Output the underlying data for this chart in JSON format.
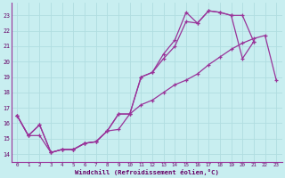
{
  "xlabel": "Windchill (Refroidissement éolien,°C)",
  "bg_color": "#c8eef0",
  "grid_color": "#b0dde0",
  "line_color": "#993399",
  "xlim": [
    -0.5,
    23.5
  ],
  "ylim": [
    13.5,
    23.8
  ],
  "xticks": [
    0,
    1,
    2,
    3,
    4,
    5,
    6,
    7,
    8,
    9,
    10,
    11,
    12,
    13,
    14,
    15,
    16,
    17,
    18,
    19,
    20,
    21,
    22,
    23
  ],
  "yticks": [
    14,
    15,
    16,
    17,
    18,
    19,
    20,
    21,
    22,
    23
  ],
  "series": [
    {
      "x": [
        0,
        1,
        2,
        3,
        4,
        5,
        6,
        7,
        8,
        9,
        10,
        11,
        12,
        13,
        14,
        15,
        16,
        17,
        18,
        19,
        20,
        21
      ],
      "y": [
        16.5,
        15.2,
        15.9,
        14.1,
        14.3,
        14.3,
        14.7,
        14.8,
        15.5,
        16.6,
        16.6,
        19.0,
        19.3,
        20.5,
        21.4,
        23.2,
        22.5,
        23.3,
        23.2,
        23.0,
        23.0,
        21.3
      ]
    },
    {
      "x": [
        0,
        1,
        2,
        3,
        4,
        5,
        6,
        7,
        8,
        9,
        10,
        11,
        12,
        13,
        14,
        15,
        16,
        17,
        18,
        19,
        20,
        21
      ],
      "y": [
        16.5,
        15.2,
        15.9,
        14.1,
        14.3,
        14.3,
        14.7,
        14.8,
        15.5,
        16.6,
        16.6,
        19.0,
        19.3,
        20.2,
        21.0,
        22.6,
        22.5,
        23.3,
        23.2,
        23.0,
        20.2,
        21.3
      ]
    },
    {
      "x": [
        0,
        1,
        2,
        3,
        4,
        5,
        6,
        7,
        8,
        9,
        10,
        11,
        12,
        13,
        14,
        15,
        16,
        17,
        18,
        19,
        20,
        21,
        22,
        23
      ],
      "y": [
        16.5,
        15.2,
        15.2,
        14.1,
        14.3,
        14.3,
        14.7,
        14.8,
        15.5,
        15.6,
        16.6,
        17.2,
        17.5,
        18.0,
        18.5,
        18.8,
        19.2,
        19.8,
        20.3,
        20.8,
        21.2,
        21.5,
        21.7,
        18.8
      ]
    }
  ]
}
